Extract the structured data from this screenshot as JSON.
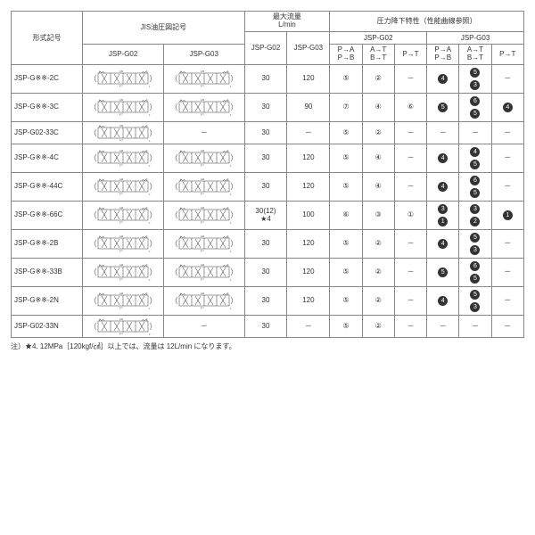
{
  "headers": {
    "model": "形式記号",
    "jis_symbol": "JIS油圧図記号",
    "max_flow": "最大流量",
    "max_flow_unit": "L/min",
    "pressure_drop": "圧力降下特性（性能曲線参照）",
    "jsp_g02": "JSP-G02",
    "jsp_g03": "JSP-G03",
    "pa_pb": "P→A\nP→B",
    "at_bt": "A→T\nB→T",
    "pt": "P→T"
  },
  "rows": [
    {
      "model": "JSP-G※※-2C",
      "sym02": true,
      "sym03": true,
      "f02": "30",
      "f03": "120",
      "g02": [
        "⑤",
        "②",
        "－"
      ],
      "g03": [
        [
          "4"
        ],
        [
          "5",
          "3"
        ],
        [
          "－"
        ]
      ]
    },
    {
      "model": "JSP-G※※-3C",
      "sym02": true,
      "sym03": true,
      "f02": "30",
      "f03": "90",
      "g02": [
        "⑦",
        "④",
        "⑥"
      ],
      "g03": [
        [
          "5"
        ],
        [
          "6",
          "5"
        ],
        [
          "4"
        ]
      ]
    },
    {
      "model": "JSP-G02-33C",
      "sym02": true,
      "sym03": false,
      "f02": "30",
      "f03": "－",
      "g02": [
        "⑤",
        "②",
        "－"
      ],
      "g03": [
        [
          "－"
        ],
        [
          "－"
        ],
        [
          "－"
        ]
      ]
    },
    {
      "model": "JSP-G※※-4C",
      "sym02": true,
      "sym03": true,
      "f02": "30",
      "f03": "120",
      "g02": [
        "⑤",
        "④",
        "－"
      ],
      "g03": [
        [
          "4"
        ],
        [
          "4",
          "5"
        ],
        [
          "－"
        ]
      ]
    },
    {
      "model": "JSP-G※※-44C",
      "sym02": true,
      "sym03": true,
      "f02": "30",
      "f03": "120",
      "g02": [
        "⑤",
        "④",
        "－"
      ],
      "g03": [
        [
          "4"
        ],
        [
          "6",
          "5"
        ],
        [
          "－"
        ]
      ]
    },
    {
      "model": "JSP-G※※-66C",
      "sym02": true,
      "sym03": true,
      "f02": "30(12)\n★4",
      "f03": "100",
      "g02": [
        "⑥",
        "③",
        "①"
      ],
      "g03": [
        [
          "3",
          "1"
        ],
        [
          "3",
          "2"
        ],
        [
          "1"
        ]
      ]
    },
    {
      "model": "JSP-G※※-2B",
      "sym02": true,
      "sym03": true,
      "f02": "30",
      "f03": "120",
      "g02": [
        "⑤",
        "②",
        "－"
      ],
      "g03": [
        [
          "4"
        ],
        [
          "5",
          "3"
        ],
        [
          "－"
        ]
      ]
    },
    {
      "model": "JSP-G※※-33B",
      "sym02": true,
      "sym03": true,
      "f02": "30",
      "f03": "120",
      "g02": [
        "⑤",
        "②",
        "－"
      ],
      "g03": [
        [
          "5"
        ],
        [
          "6",
          "5"
        ],
        [
          "－"
        ]
      ]
    },
    {
      "model": "JSP-G※※-2N",
      "sym02": true,
      "sym03": true,
      "f02": "30",
      "f03": "120",
      "g02": [
        "⑤",
        "②",
        "－"
      ],
      "g03": [
        [
          "4"
        ],
        [
          "5",
          "3"
        ],
        [
          "－"
        ]
      ]
    },
    {
      "model": "JSP-G02-33N",
      "sym02": true,
      "sym03": false,
      "f02": "30",
      "f03": "－",
      "g02": [
        "⑤",
        "②",
        "－"
      ],
      "g03": [
        [
          "－"
        ],
        [
          "－"
        ],
        [
          "－"
        ]
      ]
    }
  ],
  "footnote": "注）★4. 12MPa［120kgf/㎠］以上では、流量は 12L/min になります。",
  "colors": {
    "border": "#888888",
    "text": "#333333",
    "filled_bg": "#333333",
    "filled_fg": "#ffffff",
    "bg": "#ffffff"
  }
}
